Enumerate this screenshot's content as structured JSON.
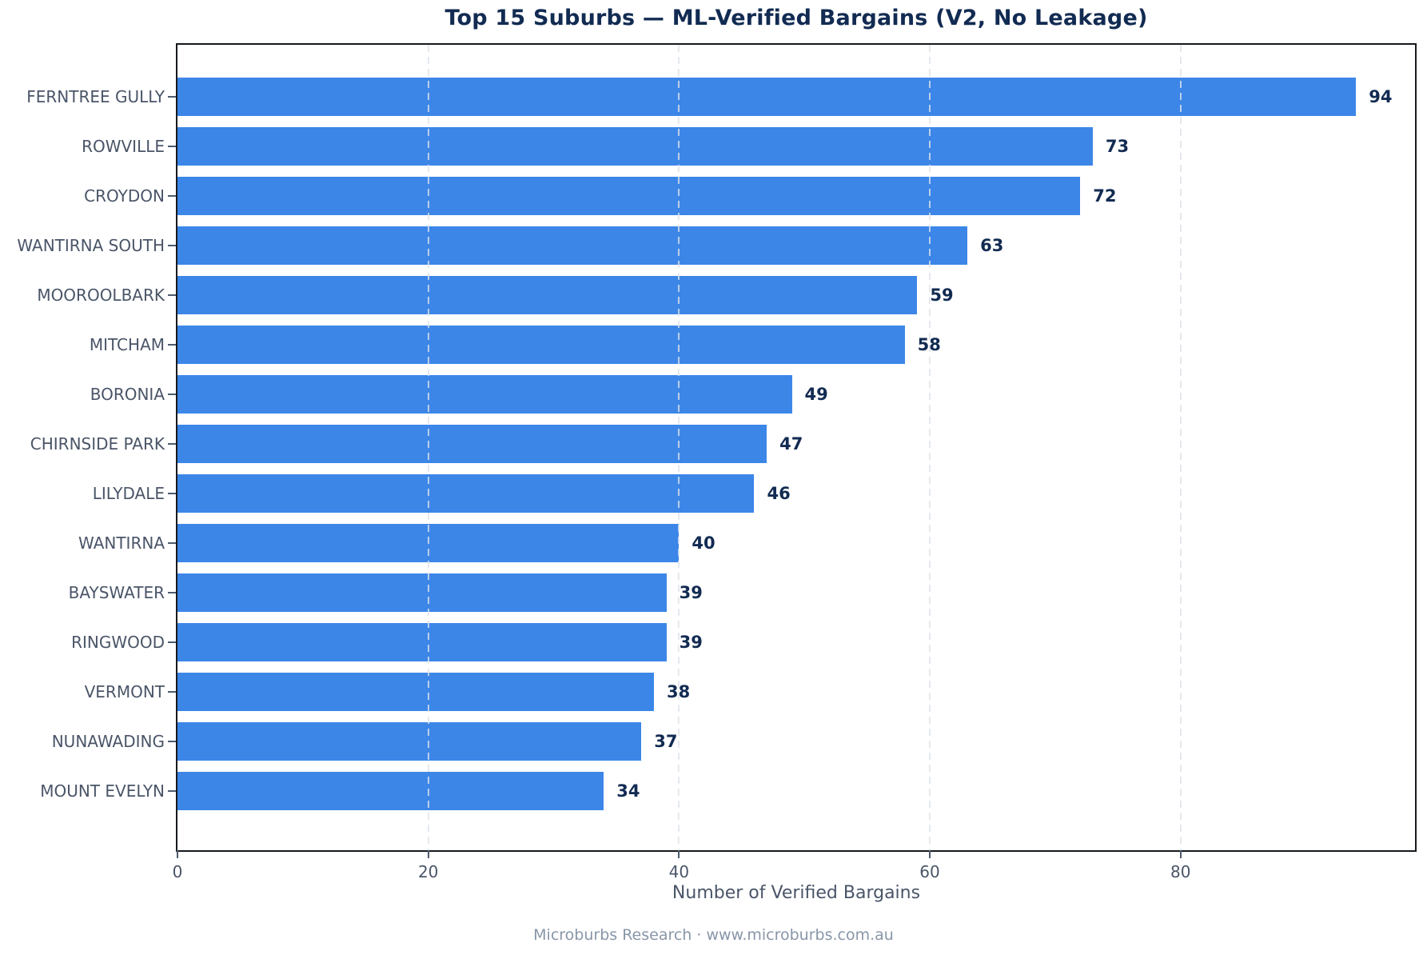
{
  "chart_data": {
    "type": "bar",
    "orientation": "horizontal",
    "title": "Top 15 Suburbs — ML-Verified Bargains (V2, No Leakage)",
    "xlabel": "Number of Verified Bargains",
    "categories": [
      "FERNTREE GULLY",
      "ROWVILLE",
      "CROYDON",
      "WANTIRNA SOUTH",
      "MOOROOLBARK",
      "MITCHAM",
      "BORONIA",
      "CHIRNSIDE PARK",
      "LILYDALE",
      "WANTIRNA",
      "BAYSWATER",
      "RINGWOOD",
      "VERMONT",
      "NUNAWADING",
      "MOUNT EVELYN"
    ],
    "values": [
      94,
      73,
      72,
      63,
      59,
      58,
      49,
      47,
      46,
      40,
      39,
      39,
      38,
      37,
      34
    ],
    "xticks": [
      0,
      20,
      40,
      60,
      80
    ],
    "xlim": [
      0,
      98.7
    ],
    "grid": "vertical-dashed",
    "legend": "none",
    "colors": {
      "bar": "#3c86e8",
      "title": "#122b52",
      "value_label": "#122b52",
      "tick_label": "#4a5568",
      "axis_title": "#4a5568",
      "spine": "#16191d",
      "footer": "#8896a8"
    },
    "footer": "Microburbs Research · www.microburbs.com.au"
  }
}
